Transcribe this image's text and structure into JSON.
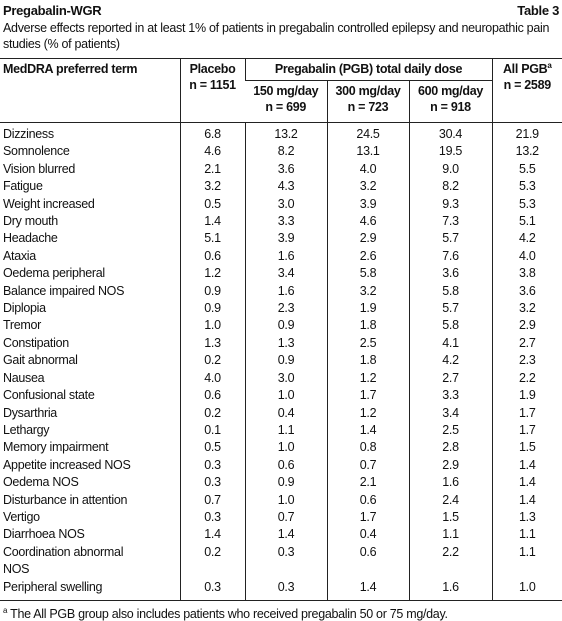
{
  "header": {
    "title": "Pregabalin-WGR",
    "table_number": "Table 3",
    "caption": "Adverse effects reported in at least 1% of patients in pregabalin controlled epilepsy and neuropathic pain studies (% of patients)"
  },
  "table": {
    "columns": {
      "term": "MedDRA preferred term",
      "placebo": {
        "label": "Placebo",
        "n": "n = 1151"
      },
      "pregabalin": "Pregabalin (PGB) total daily dose",
      "doses": [
        {
          "label": "150 mg/day",
          "n": "n = 699"
        },
        {
          "label": "300 mg/day",
          "n": "n = 723"
        },
        {
          "label": "600 mg/day",
          "n": "n = 918"
        }
      ],
      "all": {
        "label": "All PGB",
        "note": "a",
        "n": "n = 2589"
      }
    },
    "rows": [
      [
        "Dizziness",
        "6.8",
        "13.2",
        "24.5",
        "30.4",
        "21.9"
      ],
      [
        "Somnolence",
        "4.6",
        "8.2",
        "13.1",
        "19.5",
        "13.2"
      ],
      [
        "Vision blurred",
        "2.1",
        "3.6",
        "4.0",
        "9.0",
        "5.5"
      ],
      [
        "Fatigue",
        "3.2",
        "4.3",
        "3.2",
        "8.2",
        "5.3"
      ],
      [
        "Weight increased",
        "0.5",
        "3.0",
        "3.9",
        "9.3",
        "5.3"
      ],
      [
        "Dry mouth",
        "1.4",
        "3.3",
        "4.6",
        "7.3",
        "5.1"
      ],
      [
        "Headache",
        "5.1",
        "3.9",
        "2.9",
        "5.7",
        "4.2"
      ],
      [
        "Ataxia",
        "0.6",
        "1.6",
        "2.6",
        "7.6",
        "4.0"
      ],
      [
        "Oedema peripheral",
        "1.2",
        "3.4",
        "5.8",
        "3.6",
        "3.8"
      ],
      [
        "Balance impaired NOS",
        "0.9",
        "1.6",
        "3.2",
        "5.8",
        "3.6"
      ],
      [
        "Diplopia",
        "0.9",
        "2.3",
        "1.9",
        "5.7",
        "3.2"
      ],
      [
        "Tremor",
        "1.0",
        "0.9",
        "1.8",
        "5.8",
        "2.9"
      ],
      [
        "Constipation",
        "1.3",
        "1.3",
        "2.5",
        "4.1",
        "2.7"
      ],
      [
        "Gait abnormal",
        "0.2",
        "0.9",
        "1.8",
        "4.2",
        "2.3"
      ],
      [
        "Nausea",
        "4.0",
        "3.0",
        "1.2",
        "2.7",
        "2.2"
      ],
      [
        "Confusional state",
        "0.6",
        "1.0",
        "1.7",
        "3.3",
        "1.9"
      ],
      [
        "Dysarthria",
        "0.2",
        "0.4",
        "1.2",
        "3.4",
        "1.7"
      ],
      [
        "Lethargy",
        "0.1",
        "1.1",
        "1.4",
        "2.5",
        "1.7"
      ],
      [
        "Memory impairment",
        "0.5",
        "1.0",
        "0.8",
        "2.8",
        "1.5"
      ],
      [
        "Appetite increased NOS",
        "0.3",
        "0.6",
        "0.7",
        "2.9",
        "1.4"
      ],
      [
        "Oedema NOS",
        "0.3",
        "0.9",
        "2.1",
        "1.6",
        "1.4"
      ],
      [
        "Disturbance in attention",
        "0.7",
        "1.0",
        "0.6",
        "2.4",
        "1.4"
      ],
      [
        "Vertigo",
        "0.3",
        "0.7",
        "1.7",
        "1.5",
        "1.3"
      ],
      [
        "Diarrhoea NOS",
        "1.4",
        "1.4",
        "0.4",
        "1.1",
        "1.1"
      ],
      [
        "Coordination abnormal NOS",
        "0.2",
        "0.3",
        "0.6",
        "2.2",
        "1.1"
      ],
      [
        "Peripheral swelling",
        "0.3",
        "0.3",
        "1.4",
        "1.6",
        "1.0"
      ]
    ]
  },
  "footnote": {
    "marker": "a",
    "text": "The All PGB group also includes patients who received pregabalin 50 or 75 mg/day."
  }
}
